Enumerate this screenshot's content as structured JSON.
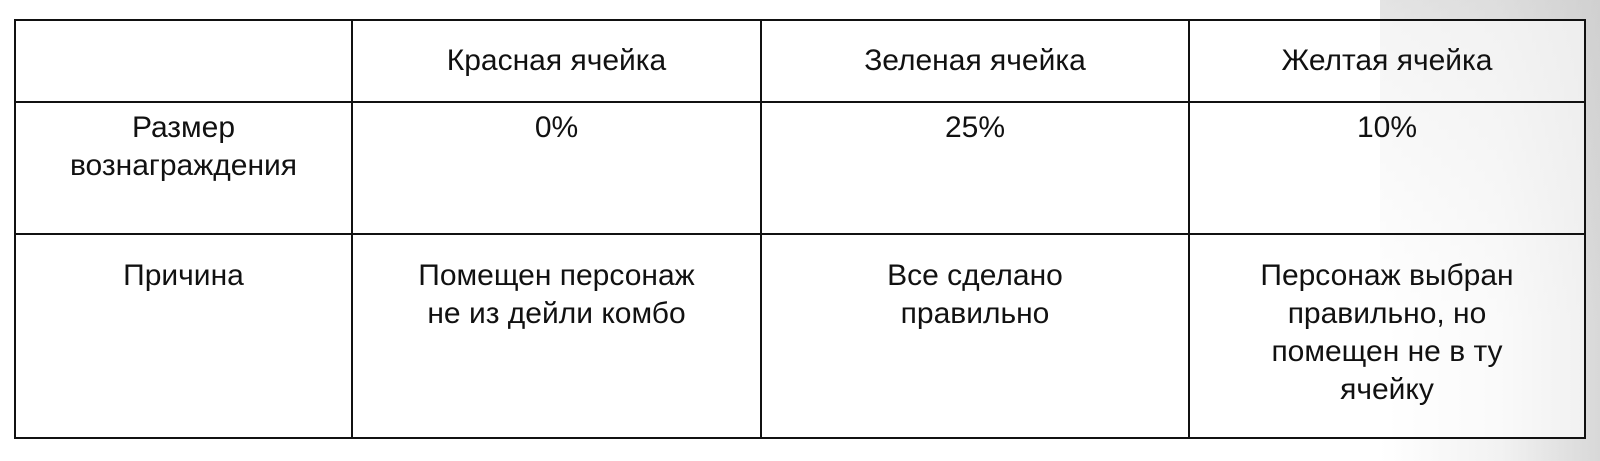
{
  "table": {
    "header": [
      "",
      "Красная ячейка",
      "Зеленая ячейка",
      "Желтая ячейка"
    ],
    "rows": [
      {
        "label": [
          "Размер",
          "вознаграждения"
        ],
        "cells": [
          [
            "0%"
          ],
          [
            "25%"
          ],
          [
            "10%"
          ]
        ]
      },
      {
        "label": [
          "Причина"
        ],
        "cells": [
          [
            "Помещен персонаж",
            "не из дейли комбо"
          ],
          [
            "Все сделано",
            "правильно"
          ],
          [
            "Персонаж выбран",
            "правильно, но",
            "помещен не в ту",
            "ячейку"
          ]
        ]
      }
    ]
  }
}
